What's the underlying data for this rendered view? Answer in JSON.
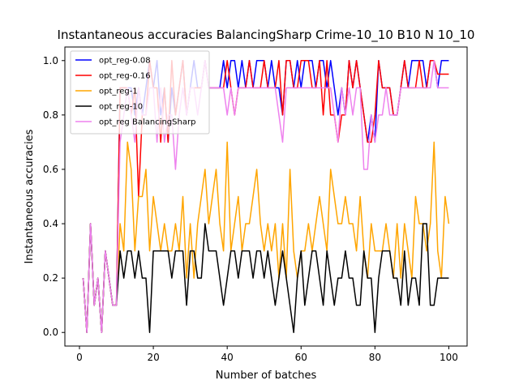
{
  "chart_data": {
    "type": "line",
    "title": "Instantaneous accuracies BalancingSharp Crime-10_10 B10 N 10_10",
    "xlabel": "Number of batches",
    "ylabel": "Instantaneous accuracies",
    "xlim": [
      -3.95,
      104.95
    ],
    "ylim": [
      -0.05,
      1.05
    ],
    "xticks": [
      0,
      20,
      40,
      60,
      80,
      100
    ],
    "yticks": [
      0.0,
      0.2,
      0.4,
      0.6,
      0.8,
      1.0
    ],
    "xtick_labels": [
      "0",
      "20",
      "40",
      "60",
      "80",
      "100"
    ],
    "ytick_labels": [
      "0.0",
      "0.2",
      "0.4",
      "0.6",
      "0.8",
      "1.0"
    ],
    "legend_position": "upper-left",
    "x_start": 1,
    "series": [
      {
        "name": "opt_reg-0.08",
        "color": "#0000ff",
        "values": [
          0.2,
          0.0,
          0.4,
          0.1,
          0.2,
          0.0,
          0.3,
          0.2,
          0.1,
          0.1,
          0.9,
          0.9,
          0.9,
          0.9,
          0.8,
          0.9,
          0.8,
          0.9,
          1.0,
          0.9,
          1.0,
          0.8,
          0.9,
          0.7,
          0.9,
          0.8,
          0.9,
          1.0,
          0.8,
          0.9,
          1.0,
          0.9,
          0.9,
          1.0,
          0.9,
          0.9,
          0.9,
          0.9,
          1.0,
          0.9,
          1.0,
          1.0,
          0.9,
          1.0,
          0.9,
          1.0,
          0.9,
          1.0,
          1.0,
          1.0,
          0.9,
          1.0,
          0.9,
          0.9,
          0.8,
          1.0,
          1.0,
          0.9,
          1.0,
          0.9,
          1.0,
          1.0,
          1.0,
          0.9,
          1.0,
          1.0,
          0.9,
          1.0,
          0.9,
          0.8,
          0.9,
          0.8,
          1.0,
          0.9,
          1.0,
          0.9,
          0.8,
          0.7,
          0.8,
          0.7,
          1.0,
          0.9,
          0.9,
          0.9,
          0.8,
          0.8,
          0.9,
          1.0,
          0.9,
          1.0,
          1.0,
          1.0,
          1.0,
          0.9,
          1.0,
          1.0,
          0.9,
          1.0,
          1.0,
          1.0
        ]
      },
      {
        "name": "opt_reg-0.16",
        "color": "#ff0000",
        "values": [
          0.2,
          0.0,
          0.4,
          0.1,
          0.2,
          0.0,
          0.3,
          0.2,
          0.1,
          0.1,
          0.9,
          0.9,
          0.9,
          0.8,
          0.9,
          0.5,
          0.8,
          0.8,
          1.0,
          0.9,
          0.9,
          0.7,
          0.9,
          0.7,
          1.0,
          0.8,
          0.9,
          1.0,
          0.8,
          0.9,
          0.9,
          0.9,
          0.9,
          1.0,
          0.9,
          0.9,
          0.9,
          0.9,
          0.9,
          1.0,
          0.9,
          0.8,
          0.9,
          0.9,
          0.9,
          1.0,
          0.9,
          0.9,
          0.9,
          1.0,
          0.9,
          0.9,
          0.9,
          1.0,
          0.8,
          1.0,
          1.0,
          0.9,
          0.9,
          1.0,
          1.0,
          1.0,
          0.9,
          0.9,
          1.0,
          0.8,
          1.0,
          0.8,
          0.8,
          0.7,
          0.8,
          0.8,
          1.0,
          0.9,
          1.0,
          0.9,
          0.8,
          0.7,
          0.7,
          0.8,
          1.0,
          0.9,
          0.9,
          0.9,
          0.8,
          0.8,
          0.9,
          1.0,
          0.9,
          0.9,
          0.9,
          1.0,
          0.9,
          0.9,
          1.0,
          1.0,
          0.95,
          0.95,
          0.95,
          0.95
        ]
      },
      {
        "name": "opt_reg-1",
        "color": "#ffa500",
        "values": [
          0.2,
          0.0,
          0.4,
          0.1,
          0.2,
          0.0,
          0.3,
          0.2,
          0.1,
          0.1,
          0.4,
          0.3,
          0.7,
          0.6,
          0.3,
          0.5,
          0.5,
          0.6,
          0.3,
          0.5,
          0.4,
          0.3,
          0.4,
          0.3,
          0.3,
          0.4,
          0.3,
          0.5,
          0.2,
          0.4,
          0.2,
          0.4,
          0.5,
          0.6,
          0.4,
          0.5,
          0.6,
          0.4,
          0.3,
          0.7,
          0.3,
          0.4,
          0.5,
          0.3,
          0.4,
          0.4,
          0.5,
          0.6,
          0.4,
          0.3,
          0.4,
          0.3,
          0.4,
          0.2,
          0.4,
          0.2,
          0.6,
          0.3,
          0.2,
          0.3,
          0.3,
          0.4,
          0.3,
          0.4,
          0.5,
          0.4,
          0.3,
          0.6,
          0.5,
          0.4,
          0.4,
          0.5,
          0.4,
          0.4,
          0.3,
          0.5,
          0.3,
          0.2,
          0.4,
          0.3,
          0.3,
          0.3,
          0.4,
          0.3,
          0.2,
          0.4,
          0.2,
          0.4,
          0.3,
          0.2,
          0.5,
          0.4,
          0.4,
          0.3,
          0.4,
          0.7,
          0.3,
          0.2,
          0.5,
          0.4
        ]
      },
      {
        "name": "opt_reg-10",
        "color": "#000000",
        "values": [
          0.2,
          0.0,
          0.4,
          0.1,
          0.2,
          0.0,
          0.3,
          0.2,
          0.1,
          0.1,
          0.3,
          0.2,
          0.3,
          0.3,
          0.2,
          0.3,
          0.2,
          0.2,
          0.0,
          0.3,
          0.3,
          0.3,
          0.3,
          0.3,
          0.2,
          0.3,
          0.3,
          0.3,
          0.1,
          0.3,
          0.3,
          0.2,
          0.2,
          0.4,
          0.3,
          0.3,
          0.3,
          0.2,
          0.1,
          0.2,
          0.3,
          0.3,
          0.2,
          0.3,
          0.3,
          0.3,
          0.2,
          0.3,
          0.3,
          0.2,
          0.3,
          0.2,
          0.1,
          0.2,
          0.3,
          0.2,
          0.1,
          0.0,
          0.2,
          0.3,
          0.1,
          0.2,
          0.3,
          0.3,
          0.2,
          0.1,
          0.3,
          0.2,
          0.1,
          0.2,
          0.2,
          0.3,
          0.2,
          0.2,
          0.1,
          0.1,
          0.3,
          0.2,
          0.2,
          0.0,
          0.2,
          0.3,
          0.3,
          0.3,
          0.2,
          0.2,
          0.1,
          0.3,
          0.1,
          0.2,
          0.2,
          0.1,
          0.4,
          0.4,
          0.1,
          0.1,
          0.2,
          0.2,
          0.2,
          0.2
        ]
      },
      {
        "name": "opt_reg BalancingSharp",
        "color": "#ee82ee",
        "values": [
          0.2,
          0.0,
          0.4,
          0.1,
          0.2,
          0.0,
          0.3,
          0.2,
          0.1,
          0.1,
          0.7,
          0.8,
          0.9,
          0.8,
          0.7,
          0.9,
          0.8,
          0.8,
          0.9,
          0.9,
          0.7,
          0.9,
          0.7,
          0.8,
          0.8,
          0.6,
          0.8,
          0.9,
          0.8,
          0.9,
          0.9,
          0.8,
          0.9,
          1.0,
          0.9,
          0.9,
          0.9,
          0.9,
          0.9,
          0.8,
          0.9,
          0.8,
          0.9,
          0.9,
          0.9,
          0.9,
          0.9,
          0.9,
          0.9,
          0.9,
          0.9,
          0.9,
          0.9,
          0.8,
          0.7,
          0.9,
          0.9,
          0.9,
          0.9,
          0.9,
          0.9,
          0.9,
          0.9,
          0.9,
          0.9,
          0.9,
          0.9,
          0.9,
          0.8,
          0.7,
          0.9,
          0.8,
          0.9,
          0.8,
          0.9,
          0.9,
          0.6,
          0.6,
          0.8,
          0.7,
          0.8,
          0.8,
          0.9,
          0.8,
          0.8,
          0.8,
          0.9,
          0.9,
          0.9,
          0.9,
          0.9,
          0.9,
          0.9,
          0.9,
          0.9,
          1.0,
          0.9,
          0.9,
          0.9,
          0.9
        ]
      }
    ]
  }
}
